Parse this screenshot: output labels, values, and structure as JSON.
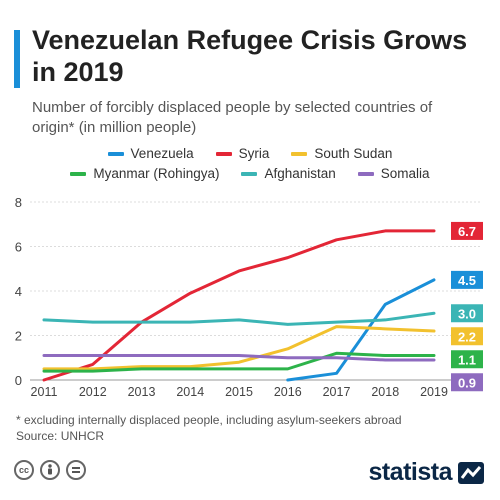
{
  "header": {
    "title": "Venezuelan Refugee Crisis Grows in 2019",
    "subtitle": "Number of forcibly displaced people by selected countries of origin* (in million people)"
  },
  "footer": {
    "footnote": "* excluding internally displaced people, including asylum-seekers abroad",
    "source": "Source: UNHCR",
    "brand": "statista"
  },
  "icons": {
    "cc": "creative-commons-icon",
    "by": "attribution-icon",
    "nd": "no-derivatives-icon",
    "brand": "statista-logo-icon"
  },
  "chart_data": {
    "type": "line",
    "x": [
      2011,
      2012,
      2013,
      2014,
      2015,
      2016,
      2017,
      2018,
      2019
    ],
    "ylim": [
      0,
      8
    ],
    "yticks": [
      0,
      2,
      4,
      6,
      8
    ],
    "grid": true,
    "legend_position": "top",
    "series": [
      {
        "name": "Venezuela",
        "color": "#1a8fd8",
        "x": [
          2016,
          2017,
          2018,
          2019
        ],
        "values": [
          0.0,
          0.3,
          3.4,
          4.5
        ],
        "end_label": "4.5"
      },
      {
        "name": "Syria",
        "color": "#e32636",
        "x": [
          2011,
          2012,
          2013,
          2014,
          2015,
          2016,
          2017,
          2018,
          2019
        ],
        "values": [
          0.0,
          0.7,
          2.6,
          3.9,
          4.9,
          5.5,
          6.3,
          6.7,
          6.7
        ],
        "end_label": "6.7"
      },
      {
        "name": "South Sudan",
        "color": "#f2c12e",
        "x": [
          2011,
          2012,
          2013,
          2014,
          2015,
          2016,
          2017,
          2018,
          2019
        ],
        "values": [
          0.5,
          0.5,
          0.6,
          0.6,
          0.8,
          1.4,
          2.4,
          2.3,
          2.2
        ],
        "end_label": "2.2"
      },
      {
        "name": "Myanmar (Rohingya)",
        "color": "#2db34a",
        "x": [
          2011,
          2012,
          2013,
          2014,
          2015,
          2016,
          2017,
          2018,
          2019
        ],
        "values": [
          0.4,
          0.4,
          0.5,
          0.5,
          0.5,
          0.5,
          1.2,
          1.1,
          1.1
        ],
        "end_label": "1.1"
      },
      {
        "name": "Afghanistan",
        "color": "#3bb5b5",
        "x": [
          2011,
          2012,
          2013,
          2014,
          2015,
          2016,
          2017,
          2018,
          2019
        ],
        "values": [
          2.7,
          2.6,
          2.6,
          2.6,
          2.7,
          2.5,
          2.6,
          2.7,
          3.0
        ],
        "end_label": "3.0"
      },
      {
        "name": "Somalia",
        "color": "#8e6bbf",
        "x": [
          2011,
          2012,
          2013,
          2014,
          2015,
          2016,
          2017,
          2018,
          2019
        ],
        "values": [
          1.1,
          1.1,
          1.1,
          1.1,
          1.1,
          1.0,
          1.0,
          0.9,
          0.9
        ],
        "end_label": "0.9"
      }
    ]
  }
}
